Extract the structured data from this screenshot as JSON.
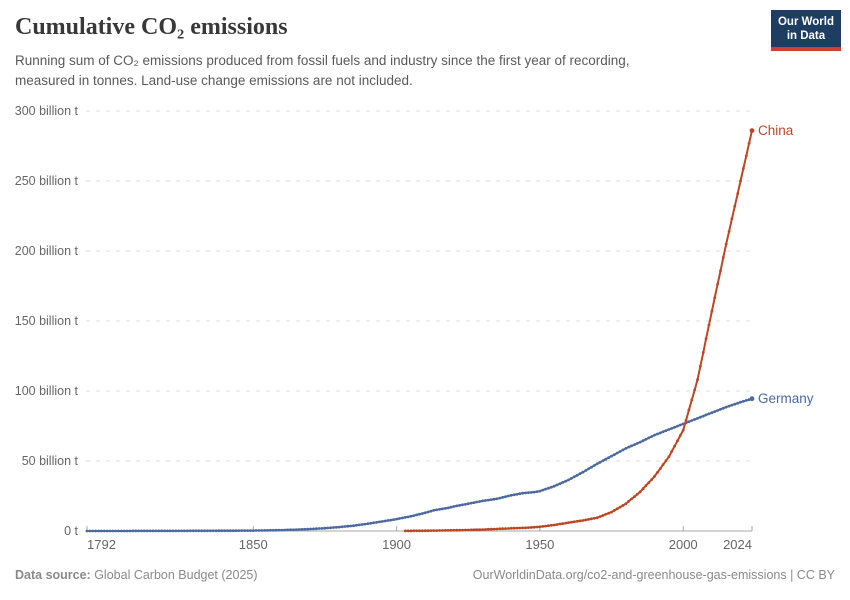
{
  "header": {
    "title": "Cumulative CO₂ emissions",
    "subtitle_line1": "Running sum of CO₂ emissions produced from fossil fuels and industry since the first year of recording,",
    "subtitle_line2": "measured in tonnes. Land-use change emissions are not included.",
    "logo_line1": "Our World",
    "logo_line2": "in Data"
  },
  "footer": {
    "source_label": "Data source:",
    "source_value": " Global Carbon Budget (2025)",
    "attribution": "OurWorldinData.org/co2-and-greenhouse-gas-emissions | CC BY"
  },
  "colors": {
    "china": "#bc4722",
    "germany": "#4c6aa0",
    "grid": "#dcdcdc",
    "axis": "#a9a9a9",
    "tick_text": "#666666",
    "logo_bg": "#1d3d63",
    "logo_accent": "#d13d33"
  },
  "chart_data": {
    "type": "line",
    "title": "Cumulative CO₂ emissions",
    "unit": "tonnes",
    "grid": true,
    "legend_position": "end-of-line",
    "x_domain": [
      1792,
      2024
    ],
    "y_domain": [
      0,
      300
    ],
    "x_ticks": [
      {
        "value": 1792,
        "label": "1792"
      },
      {
        "value": 1850,
        "label": "1850"
      },
      {
        "value": 1900,
        "label": "1900"
      },
      {
        "value": 1950,
        "label": "1950"
      },
      {
        "value": 2000,
        "label": "2000"
      },
      {
        "value": 2024,
        "label": "2024"
      }
    ],
    "y_ticks": [
      {
        "value": 0,
        "label": "0 t"
      },
      {
        "value": 50,
        "label": "50 billion t"
      },
      {
        "value": 100,
        "label": "100 billion t"
      },
      {
        "value": 150,
        "label": "150 billion t"
      },
      {
        "value": 200,
        "label": "200 billion t"
      },
      {
        "value": 250,
        "label": "250 billion t"
      },
      {
        "value": 300,
        "label": "300 billion t"
      }
    ],
    "series": [
      {
        "name": "Germany",
        "color": "#4c6aa0",
        "points_unit": "billion tonnes",
        "points": [
          [
            1792,
            0.01
          ],
          [
            1800,
            0.02
          ],
          [
            1810,
            0.04
          ],
          [
            1820,
            0.07
          ],
          [
            1830,
            0.12
          ],
          [
            1840,
            0.2
          ],
          [
            1850,
            0.3
          ],
          [
            1855,
            0.45
          ],
          [
            1860,
            0.65
          ],
          [
            1865,
            0.95
          ],
          [
            1870,
            1.4
          ],
          [
            1875,
            2.0
          ],
          [
            1880,
            2.8
          ],
          [
            1885,
            3.8
          ],
          [
            1890,
            5.2
          ],
          [
            1895,
            6.8
          ],
          [
            1900,
            8.5
          ],
          [
            1905,
            10.5
          ],
          [
            1910,
            13.0
          ],
          [
            1913,
            14.8
          ],
          [
            1918,
            16.5
          ],
          [
            1920,
            17.5
          ],
          [
            1925,
            19.5
          ],
          [
            1930,
            21.5
          ],
          [
            1935,
            23.0
          ],
          [
            1940,
            25.5
          ],
          [
            1944,
            27.0
          ],
          [
            1948,
            27.8
          ],
          [
            1950,
            28.5
          ],
          [
            1955,
            32.0
          ],
          [
            1960,
            36.5
          ],
          [
            1965,
            42.0
          ],
          [
            1970,
            48.0
          ],
          [
            1975,
            53.5
          ],
          [
            1980,
            59.0
          ],
          [
            1985,
            63.5
          ],
          [
            1990,
            68.5
          ],
          [
            1995,
            72.5
          ],
          [
            2000,
            76.5
          ],
          [
            2005,
            80.5
          ],
          [
            2010,
            84.5
          ],
          [
            2015,
            88.5
          ],
          [
            2020,
            92.0
          ],
          [
            2024,
            94.5
          ]
        ]
      },
      {
        "name": "China",
        "color": "#bc4722",
        "points_unit": "billion tonnes",
        "points": [
          [
            1903,
            0.05
          ],
          [
            1910,
            0.2
          ],
          [
            1920,
            0.5
          ],
          [
            1930,
            1.0
          ],
          [
            1940,
            1.9
          ],
          [
            1945,
            2.3
          ],
          [
            1950,
            3.0
          ],
          [
            1955,
            4.3
          ],
          [
            1960,
            6.0
          ],
          [
            1965,
            7.5
          ],
          [
            1970,
            9.5
          ],
          [
            1975,
            13.5
          ],
          [
            1980,
            19.5
          ],
          [
            1985,
            28.0
          ],
          [
            1990,
            39.0
          ],
          [
            1995,
            53.0
          ],
          [
            2000,
            72.0
          ],
          [
            2005,
            108.0
          ],
          [
            2010,
            157.0
          ],
          [
            2015,
            205.0
          ],
          [
            2020,
            250.0
          ],
          [
            2024,
            286.0
          ]
        ]
      }
    ]
  }
}
